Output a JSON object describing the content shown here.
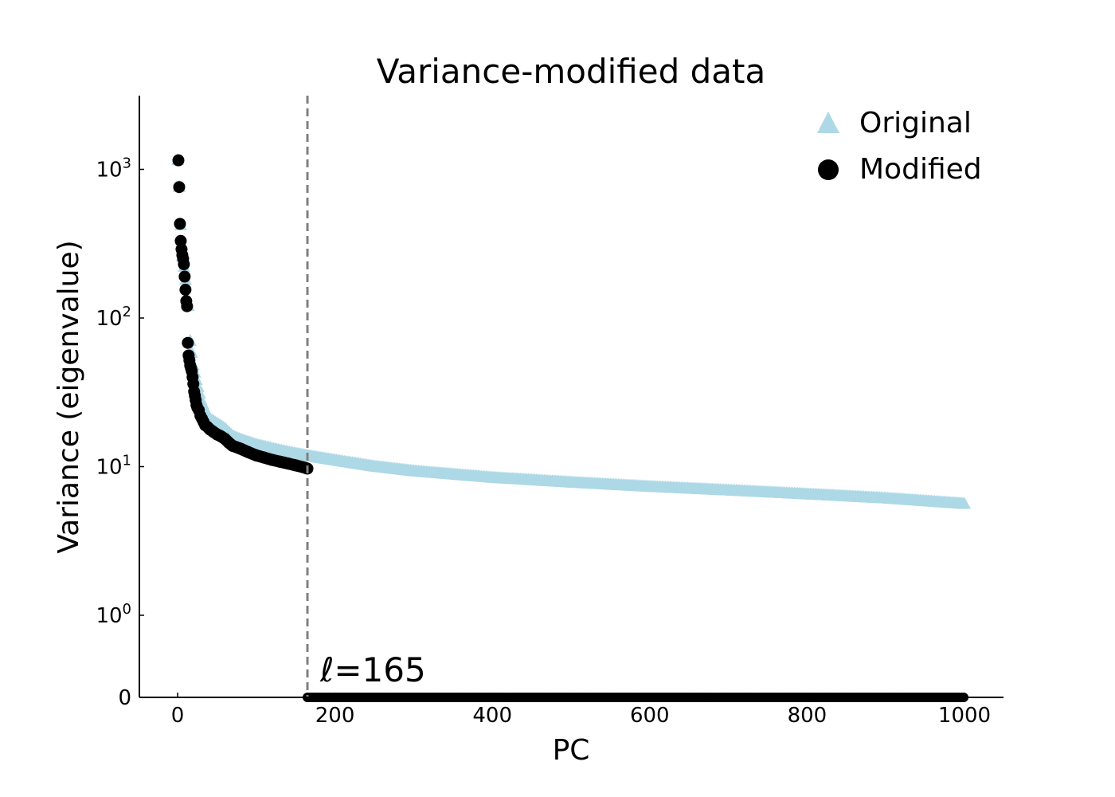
{
  "chart_data": {
    "type": "scatter",
    "title": "Variance-modified data",
    "xlabel": "PC",
    "ylabel": "Variance (eigenvalue)",
    "yscale": "symlog",
    "xlim": [
      -48,
      1050
    ],
    "ylim_top": 1800,
    "xticks": [
      "0",
      "200",
      "400",
      "600",
      "800",
      "1000"
    ],
    "xtick_values": [
      0,
      200,
      400,
      600,
      800,
      1000
    ],
    "yticks": [
      {
        "value": 0,
        "base": "0",
        "exp": ""
      },
      {
        "value": 1,
        "base": "10",
        "exp": "0"
      },
      {
        "value": 10,
        "base": "10",
        "exp": "1"
      },
      {
        "value": 100,
        "base": "10",
        "exp": "2"
      },
      {
        "value": 1000,
        "base": "10",
        "exp": "3"
      }
    ],
    "legend_position": "top-right",
    "cutoff": {
      "x": 165,
      "label_prefix": "ℓ",
      "label_suffix": "=165",
      "color": "#808080"
    },
    "series": [
      {
        "name": "Original",
        "marker": "triangle",
        "color": "#add8e6",
        "x": [
          0,
          2,
          4,
          6,
          8,
          10,
          12,
          14,
          16,
          20,
          25,
          30,
          35,
          40,
          50,
          60,
          70,
          80,
          100,
          120,
          140,
          165,
          200,
          250,
          300,
          400,
          500,
          600,
          700,
          800,
          900,
          1000
        ],
        "y": [
          1150,
          760,
          420,
          260,
          220,
          180,
          130,
          120,
          70,
          48,
          36,
          28,
          24,
          21,
          19.5,
          18,
          16,
          15.2,
          14,
          13.2,
          12.5,
          11.8,
          11,
          10,
          9.3,
          8.4,
          7.8,
          7.3,
          6.9,
          6.5,
          6.1,
          5.6
        ]
      },
      {
        "name": "Modified",
        "marker": "circle",
        "color": "#000000",
        "x": [
          1,
          2,
          3,
          4,
          5,
          6,
          7,
          8,
          9,
          10,
          11,
          12,
          13,
          14,
          15,
          16,
          17,
          18,
          19,
          20,
          21,
          22,
          23,
          24,
          25,
          27,
          29,
          31,
          33,
          35,
          38,
          41,
          45,
          50,
          55,
          60,
          65,
          70,
          80,
          90,
          100,
          110,
          120,
          130,
          140,
          150,
          160,
          165
        ],
        "y": [
          1150,
          760,
          430,
          330,
          290,
          265,
          250,
          230,
          190,
          155,
          130,
          120,
          68,
          56,
          52,
          48,
          46,
          44,
          40,
          36,
          32,
          30,
          28,
          26,
          25,
          24,
          22,
          21,
          20,
          19,
          18.5,
          17.8,
          17.2,
          16.5,
          16,
          15.4,
          14.5,
          13.8,
          13.2,
          12.5,
          11.9,
          11.5,
          11.1,
          10.8,
          10.5,
          10.2,
          9.9,
          9.7
        ]
      }
    ],
    "zero_series": {
      "name": "Modified",
      "x_start": 165,
      "x_end": 1000,
      "y": 0
    }
  }
}
